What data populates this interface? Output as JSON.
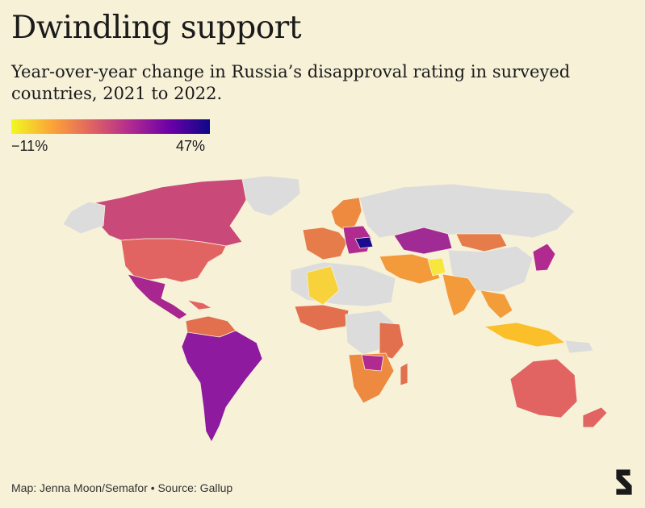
{
  "header": {
    "title": "Dwindling support",
    "subtitle": "Year-over-year change in Russia’s disapproval rating in surveyed countries, 2021 to 2022."
  },
  "legend": {
    "min_label": "−11%",
    "max_label": "47%",
    "colors": [
      "#f0f921",
      "#fca636",
      "#e16462",
      "#b12a90",
      "#6a00a8",
      "#0d0887"
    ]
  },
  "map": {
    "no_data_color": "#dcdcdc",
    "background": "#f7f1d8"
  },
  "footer": {
    "credit": "Map: Jenna Moon/Semafor • Source: Gallup"
  },
  "brand": {
    "logo_icon": "semafor-s-logo-icon"
  }
}
